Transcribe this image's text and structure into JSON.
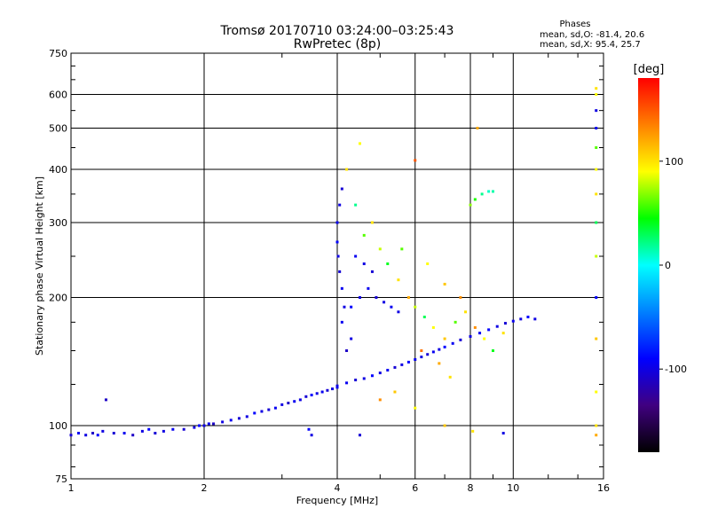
{
  "chart_data": {
    "type": "scatter",
    "title": "Tromsø 20170710 03:24:00–03:25:43",
    "subtitle": "RwPretec (8p)",
    "xlabel": "Frequency [MHz]",
    "ylabel": "Stationary phase Virtual Height [km]",
    "x_scale": "log",
    "y_scale": "log",
    "xlim": [
      1,
      16
    ],
    "ylim": [
      75,
      750
    ],
    "x_ticks": [
      1,
      2,
      4,
      6,
      8,
      10,
      16
    ],
    "y_ticks": [
      75,
      100,
      200,
      300,
      400,
      500,
      600,
      750
    ],
    "grid": true,
    "phases": {
      "heading": "Phases",
      "o_line": "mean, sd,O: -81.4, 20.6",
      "x_line": "mean, sd,X:  95.4, 25.7"
    },
    "colorbar": {
      "label": "[deg]",
      "ticks": [
        100,
        0,
        -100
      ],
      "range": [
        -180,
        180
      ],
      "colors": [
        "#ff0000",
        "#ff8000",
        "#ffff00",
        "#00ff00",
        "#00ffff",
        "#0080ff",
        "#0000ff",
        "#400080",
        "#000000"
      ]
    },
    "series": [
      {
        "description_key": "E region and low-frequency band",
        "points": [
          [
            1.0,
            95,
            -105
          ],
          [
            1.04,
            96,
            -95
          ],
          [
            1.08,
            95,
            -100
          ],
          [
            1.12,
            96,
            -110
          ],
          [
            1.15,
            95,
            -90
          ],
          [
            1.18,
            97,
            -100
          ],
          [
            1.25,
            96,
            -105
          ],
          [
            1.32,
            96,
            -95
          ],
          [
            1.38,
            95,
            -110
          ],
          [
            1.45,
            97,
            -100
          ],
          [
            1.5,
            98,
            -90
          ],
          [
            1.55,
            96,
            -105
          ],
          [
            1.62,
            97,
            -100
          ],
          [
            1.7,
            98,
            -95
          ],
          [
            1.8,
            98,
            -105
          ],
          [
            1.9,
            99,
            -100
          ],
          [
            1.95,
            100,
            -90
          ],
          [
            2.0,
            100,
            -100
          ],
          [
            2.05,
            101,
            -95
          ],
          [
            2.1,
            101,
            -110
          ],
          [
            2.2,
            102,
            -100
          ],
          [
            2.3,
            103,
            -95
          ],
          [
            2.4,
            104,
            -105
          ],
          [
            2.5,
            105,
            -100
          ],
          [
            2.6,
            107,
            -90
          ],
          [
            2.7,
            108,
            -100
          ],
          [
            2.8,
            109,
            -105
          ],
          [
            2.9,
            110,
            -95
          ],
          [
            3.0,
            112,
            -100
          ],
          [
            3.1,
            113,
            -110
          ],
          [
            3.2,
            114,
            -95
          ],
          [
            3.3,
            115,
            -100
          ],
          [
            3.4,
            117,
            -105
          ],
          [
            3.5,
            118,
            -90
          ],
          [
            3.6,
            119,
            -100
          ],
          [
            3.7,
            120,
            -95
          ],
          [
            3.8,
            121,
            -105
          ],
          [
            3.9,
            122,
            -100
          ],
          [
            4.0,
            123,
            -95
          ],
          [
            1.2,
            115,
            -110
          ],
          [
            3.5,
            95,
            -100
          ],
          [
            3.45,
            98,
            -90
          ]
        ]
      },
      {
        "description_key": "F region trace",
        "points": [
          [
            4.0,
            124,
            -100
          ],
          [
            4.2,
            126,
            -95
          ],
          [
            4.4,
            128,
            -105
          ],
          [
            4.6,
            129,
            -100
          ],
          [
            4.8,
            131,
            -90
          ],
          [
            5.0,
            133,
            -100
          ],
          [
            5.2,
            135,
            -95
          ],
          [
            5.4,
            137,
            -105
          ],
          [
            5.6,
            139,
            -100
          ],
          [
            5.8,
            141,
            -90
          ],
          [
            6.0,
            143,
            -95
          ],
          [
            6.2,
            145,
            -100
          ],
          [
            6.4,
            147,
            -105
          ],
          [
            6.6,
            149,
            -95
          ],
          [
            6.8,
            151,
            -100
          ],
          [
            7.0,
            153,
            -90
          ],
          [
            7.3,
            156,
            -95
          ],
          [
            7.6,
            159,
            -105
          ],
          [
            8.0,
            162,
            -100
          ],
          [
            8.4,
            165,
            -95
          ],
          [
            8.8,
            168,
            -90
          ],
          [
            9.2,
            171,
            -100
          ],
          [
            9.6,
            174,
            -105
          ],
          [
            10.0,
            176,
            -95
          ],
          [
            10.4,
            178,
            -100
          ],
          [
            10.8,
            180,
            -90
          ],
          [
            11.2,
            178,
            -100
          ],
          [
            4.2,
            150,
            -110
          ],
          [
            4.3,
            160,
            -100
          ],
          [
            4.1,
            175,
            -95
          ],
          [
            4.15,
            190,
            -100
          ],
          [
            4.1,
            210,
            -95
          ],
          [
            4.05,
            230,
            -105
          ],
          [
            4.02,
            250,
            -100
          ],
          [
            4.0,
            270,
            -90
          ],
          [
            4.0,
            300,
            -95
          ],
          [
            4.05,
            330,
            -100
          ],
          [
            4.1,
            360,
            -105
          ],
          [
            4.3,
            190,
            -90
          ],
          [
            4.5,
            200,
            -100
          ],
          [
            4.7,
            210,
            -95
          ],
          [
            4.9,
            200,
            -105
          ],
          [
            5.1,
            195,
            -100
          ],
          [
            5.3,
            190,
            -95
          ],
          [
            5.5,
            185,
            -100
          ],
          [
            4.4,
            250,
            -95
          ],
          [
            4.6,
            240,
            -100
          ],
          [
            4.8,
            230,
            -105
          ]
        ]
      },
      {
        "description_key": "scattered echoes",
        "points": [
          [
            4.2,
            400,
            100
          ],
          [
            4.5,
            460,
            90
          ],
          [
            4.4,
            330,
            20
          ],
          [
            4.6,
            280,
            60
          ],
          [
            5.0,
            260,
            80
          ],
          [
            5.2,
            240,
            40
          ],
          [
            5.5,
            220,
            100
          ],
          [
            5.8,
            200,
            120
          ],
          [
            6.0,
            190,
            80
          ],
          [
            6.3,
            180,
            30
          ],
          [
            6.6,
            170,
            90
          ],
          [
            7.0,
            160,
            110
          ],
          [
            7.4,
            175,
            60
          ],
          [
            7.8,
            185,
            100
          ],
          [
            8.2,
            170,
            130
          ],
          [
            8.6,
            160,
            90
          ],
          [
            9.0,
            150,
            40
          ],
          [
            9.5,
            165,
            100
          ],
          [
            6.2,
            150,
            140
          ],
          [
            6.8,
            140,
            120
          ],
          [
            7.2,
            130,
            100
          ],
          [
            5.4,
            120,
            110
          ],
          [
            5.0,
            115,
            130
          ],
          [
            6.0,
            110,
            90
          ],
          [
            8.0,
            330,
            70
          ],
          [
            8.2,
            340,
            50
          ],
          [
            8.5,
            350,
            20
          ],
          [
            8.8,
            355,
            10
          ],
          [
            9.0,
            355,
            15
          ],
          [
            8.3,
            500,
            120
          ],
          [
            6.0,
            420,
            150
          ],
          [
            4.8,
            300,
            100
          ],
          [
            5.6,
            260,
            60
          ],
          [
            6.4,
            240,
            90
          ],
          [
            7.0,
            215,
            110
          ],
          [
            7.6,
            200,
            130
          ],
          [
            15.4,
            600,
            90
          ],
          [
            15.4,
            620,
            100
          ],
          [
            15.4,
            550,
            -100
          ],
          [
            15.4,
            500,
            -95
          ],
          [
            15.4,
            450,
            60
          ],
          [
            15.4,
            400,
            90
          ],
          [
            15.4,
            350,
            100
          ],
          [
            15.4,
            300,
            30
          ],
          [
            15.4,
            250,
            80
          ],
          [
            15.4,
            200,
            -90
          ],
          [
            15.4,
            160,
            110
          ],
          [
            15.4,
            120,
            90
          ],
          [
            15.4,
            100,
            100
          ],
          [
            15.4,
            95,
            120
          ],
          [
            7.0,
            100,
            110
          ],
          [
            8.1,
            97,
            100
          ],
          [
            9.5,
            96,
            -100
          ],
          [
            4.5,
            95,
            -105
          ]
        ]
      }
    ]
  }
}
